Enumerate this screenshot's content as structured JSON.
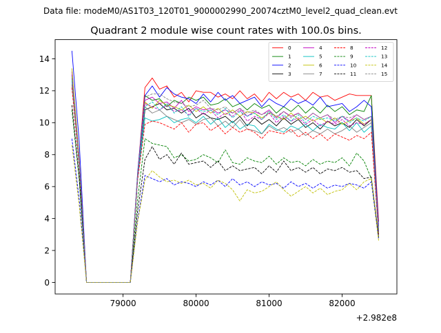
{
  "figure": {
    "suptitle": "Data file: modeM0/AS1T03_120T01_9000002990_20074cztM0_level2_quad_clean.evt"
  },
  "chart_data": {
    "type": "line",
    "title": "Quadrant 2 module wise count rates with 100.0s bins.",
    "xlabel": "",
    "ylabel": "",
    "x_offset_label": "+2.982e8",
    "xlim": [
      78070,
      82750
    ],
    "ylim": [
      -0.72,
      15.2
    ],
    "xticks": [
      79000,
      80000,
      81000,
      82000
    ],
    "xtick_labels": [
      "79000",
      "80000",
      "81000",
      "82000"
    ],
    "yticks": [
      0,
      2,
      4,
      6,
      8,
      10,
      12,
      14
    ],
    "ytick_labels": [
      "0",
      "2",
      "4",
      "6",
      "8",
      "10",
      "12",
      "14"
    ],
    "grid": false,
    "legend": {
      "location": "upper right",
      "columns": 4
    },
    "x": [
      78300,
      78400,
      78500,
      78600,
      78700,
      78800,
      78900,
      79000,
      79100,
      79200,
      79300,
      79400,
      79500,
      79600,
      79700,
      79800,
      79900,
      80000,
      80100,
      80200,
      80300,
      80400,
      80500,
      80600,
      80700,
      80800,
      80900,
      81000,
      81100,
      81200,
      81300,
      81400,
      81500,
      81600,
      81700,
      81800,
      81900,
      82000,
      82100,
      82200,
      82300,
      82400,
      82500
    ],
    "series": [
      {
        "name": "0",
        "color": "#ff0000",
        "dash": "solid",
        "values": [
          12.4,
          7.6,
          0,
          0,
          0,
          0,
          0,
          0,
          0,
          6.8,
          12.2,
          12.8,
          12.1,
          12.3,
          11.6,
          11.9,
          11.3,
          12.0,
          11.9,
          11.9,
          11.6,
          11.8,
          11.5,
          12.0,
          11.5,
          11.8,
          11.3,
          11.9,
          11.5,
          11.9,
          11.6,
          11.8,
          11.4,
          11.9,
          11.6,
          11.7,
          11.4,
          11.6,
          11.8,
          11.7,
          11.7,
          11.7,
          3.8
        ]
      },
      {
        "name": "1",
        "color": "#008000",
        "dash": "solid",
        "values": [
          12.8,
          7.3,
          0,
          0,
          0,
          0,
          0,
          0,
          0,
          6.7,
          11.7,
          11.4,
          11.5,
          11.0,
          11.4,
          11.2,
          11.6,
          11.4,
          11.6,
          11.1,
          11.2,
          11.5,
          11.0,
          11.2,
          10.8,
          11.2,
          10.9,
          11.1,
          10.6,
          11.0,
          10.7,
          11.1,
          10.6,
          11.0,
          10.6,
          11.1,
          10.7,
          11.0,
          10.5,
          10.8,
          10.7,
          11.7,
          3.2
        ]
      },
      {
        "name": "2",
        "color": "#0000ff",
        "dash": "solid",
        "values": [
          14.5,
          8.8,
          0,
          0,
          0,
          0,
          0,
          0,
          0,
          6.9,
          11.7,
          12.3,
          11.6,
          12.2,
          11.8,
          11.6,
          11.5,
          11.2,
          11.8,
          11.3,
          11.9,
          11.4,
          11.7,
          11.2,
          11.4,
          11.6,
          11.0,
          11.5,
          11.2,
          11.0,
          11.5,
          11.2,
          11.4,
          11.1,
          11.6,
          11.0,
          11.1,
          11.2,
          10.7,
          11.0,
          11.4,
          11.0,
          3.5
        ]
      },
      {
        "name": "3",
        "color": "#000000",
        "dash": "solid",
        "values": [
          13.0,
          7.5,
          0,
          0,
          0,
          0,
          0,
          0,
          0,
          6.6,
          10.8,
          11.0,
          11.2,
          10.8,
          10.9,
          10.6,
          10.9,
          10.3,
          10.6,
          10.3,
          10.2,
          10.4,
          10.0,
          10.4,
          9.8,
          10.3,
          9.9,
          10.2,
          9.8,
          10.3,
          9.9,
          10.2,
          9.7,
          10.0,
          9.6,
          10.1,
          9.8,
          10.0,
          9.7,
          10.2,
          9.8,
          10.2,
          3.0
        ]
      },
      {
        "name": "4",
        "color": "#bf00bf",
        "dash": "solid",
        "values": [
          13.2,
          7.7,
          0,
          0,
          0,
          0,
          0,
          0,
          0,
          6.7,
          11.4,
          11.6,
          11.2,
          11.3,
          10.9,
          11.4,
          10.7,
          11.0,
          10.8,
          10.9,
          10.6,
          10.8,
          10.6,
          10.9,
          10.4,
          10.7,
          10.5,
          10.8,
          10.3,
          10.7,
          10.4,
          10.6,
          10.2,
          10.6,
          10.3,
          10.5,
          10.0,
          10.4,
          10.1,
          10.5,
          10.2,
          10.4,
          3.2
        ]
      },
      {
        "name": "5",
        "color": "#00bfbf",
        "dash": "solid",
        "values": [
          12.6,
          7.4,
          0,
          0,
          0,
          0,
          0,
          0,
          0,
          6.5,
          10.3,
          10.1,
          10.2,
          10.4,
          10.0,
          10.2,
          10.3,
          10.0,
          10.4,
          9.9,
          10.3,
          9.7,
          10.1,
          9.6,
          9.9,
          9.8,
          9.3,
          9.9,
          9.6,
          9.4,
          9.8,
          9.6,
          9.9,
          9.5,
          9.9,
          9.7,
          9.6,
          10.0,
          9.5,
          10.0,
          9.4,
          9.8,
          3.0
        ]
      },
      {
        "name": "6",
        "color": "#bfbf00",
        "dash": "solid",
        "values": [
          13.4,
          7.8,
          0,
          0,
          0,
          0,
          0,
          0,
          0,
          6.7,
          11.3,
          10.9,
          11.4,
          11.1,
          11.0,
          10.8,
          11.1,
          10.7,
          11.0,
          10.6,
          10.9,
          10.5,
          10.8,
          10.4,
          10.7,
          10.6,
          10.3,
          10.6,
          10.4,
          10.2,
          10.6,
          10.2,
          10.4,
          10.1,
          10.3,
          10.0,
          10.3,
          9.9,
          10.1,
          10.3,
          9.9,
          10.2,
          3.0
        ]
      },
      {
        "name": "7",
        "color": "#808080",
        "dash": "solid",
        "values": [
          12.9,
          7.5,
          0,
          0,
          0,
          0,
          0,
          0,
          0,
          6.7,
          11.0,
          10.6,
          10.8,
          10.4,
          10.2,
          10.0,
          10.2,
          9.9,
          10.2,
          10.3,
          9.8,
          10.1,
          9.7,
          10.2,
          9.6,
          9.5,
          9.3,
          9.8,
          9.5,
          9.7,
          9.4,
          9.6,
          9.2,
          9.5,
          9.3,
          9.6,
          9.3,
          9.5,
          9.8,
          9.4,
          9.7,
          10.0,
          3.0
        ]
      },
      {
        "name": "8",
        "color": "#ff0000",
        "dash": "dashed",
        "values": [
          12.2,
          7.3,
          0,
          0,
          0,
          0,
          0,
          0,
          0,
          6.4,
          9.9,
          10.1,
          10.0,
          9.8,
          9.6,
          10.0,
          9.4,
          9.9,
          10.0,
          9.5,
          9.8,
          9.3,
          9.7,
          9.4,
          9.6,
          9.4,
          9.0,
          9.5,
          9.4,
          9.3,
          9.6,
          9.1,
          9.4,
          9.0,
          9.3,
          8.9,
          9.3,
          9.1,
          8.9,
          9.2,
          9.0,
          9.4,
          3.0
        ]
      },
      {
        "name": "9",
        "color": "#008000",
        "dash": "dashed",
        "values": [
          10.8,
          6.4,
          0,
          0,
          0,
          0,
          0,
          0,
          0,
          5.2,
          9.0,
          8.7,
          8.6,
          8.5,
          7.8,
          8.0,
          7.6,
          7.7,
          8.0,
          7.8,
          7.5,
          8.3,
          7.5,
          7.4,
          7.8,
          7.6,
          7.5,
          7.9,
          7.4,
          7.8,
          7.5,
          7.6,
          7.3,
          7.7,
          7.4,
          7.6,
          7.5,
          7.8,
          7.3,
          8.1,
          7.6,
          6.5,
          2.8
        ]
      },
      {
        "name": "10",
        "color": "#0000ff",
        "dash": "dashed",
        "values": [
          9.0,
          5.2,
          0,
          0,
          0,
          0,
          0,
          0,
          0,
          3.9,
          6.7,
          6.5,
          6.3,
          6.5,
          6.1,
          6.3,
          6.2,
          6.0,
          6.3,
          6.1,
          6.4,
          6.0,
          6.5,
          6.1,
          6.3,
          6.0,
          6.3,
          6.1,
          6.2,
          5.9,
          6.3,
          6.0,
          6.2,
          5.9,
          6.2,
          5.9,
          6.1,
          6.0,
          6.2,
          6.1,
          5.9,
          6.3,
          2.7
        ]
      },
      {
        "name": "11",
        "color": "#000000",
        "dash": "dashed",
        "values": [
          11.1,
          6.6,
          0,
          0,
          0,
          0,
          0,
          0,
          0,
          4.5,
          7.7,
          8.5,
          7.7,
          8.0,
          7.4,
          8.1,
          7.4,
          7.5,
          7.6,
          7.2,
          7.6,
          7.0,
          7.3,
          7.0,
          7.1,
          7.2,
          6.8,
          7.3,
          6.9,
          7.6,
          7.0,
          7.2,
          6.9,
          7.2,
          6.8,
          7.1,
          7.0,
          7.2,
          6.9,
          7.0,
          6.5,
          6.6,
          2.8
        ]
      },
      {
        "name": "12",
        "color": "#bf00bf",
        "dash": "dashed",
        "values": [
          13.0,
          7.6,
          0,
          0,
          0,
          0,
          0,
          0,
          0,
          6.6,
          11.2,
          11.0,
          10.8,
          11.1,
          10.7,
          10.8,
          10.5,
          10.9,
          10.5,
          10.8,
          10.3,
          10.6,
          10.4,
          10.8,
          10.1,
          10.4,
          10.2,
          10.6,
          10.0,
          10.4,
          10.1,
          10.3,
          9.9,
          10.2,
          9.8,
          10.1,
          9.9,
          10.2,
          9.8,
          10.0,
          9.9,
          10.2,
          3.1
        ]
      },
      {
        "name": "13",
        "color": "#00bfbf",
        "dash": "dashed",
        "values": [
          12.7,
          7.5,
          0,
          0,
          0,
          0,
          0,
          0,
          0,
          6.6,
          11.0,
          11.3,
          10.8,
          11.2,
          10.6,
          11.0,
          10.4,
          10.9,
          10.7,
          10.8,
          10.5,
          10.9,
          10.3,
          10.7,
          10.4,
          10.6,
          10.2,
          10.7,
          10.2,
          10.5,
          10.1,
          10.5,
          10.0,
          10.4,
          10.2,
          10.3,
          10.1,
          10.4,
          10.0,
          10.3,
          10.1,
          10.4,
          3.2
        ]
      },
      {
        "name": "14",
        "color": "#bfbf00",
        "dash": "dashed",
        "values": [
          8.6,
          4.8,
          0,
          0,
          0,
          0,
          0,
          0,
          0,
          3.8,
          6.4,
          7.0,
          6.6,
          6.3,
          6.4,
          6.2,
          6.4,
          6.1,
          6.2,
          5.9,
          6.4,
          6.2,
          5.8,
          5.1,
          5.8,
          5.6,
          5.7,
          6.0,
          6.3,
          5.8,
          5.4,
          5.7,
          6.0,
          5.6,
          5.9,
          5.5,
          5.7,
          5.8,
          6.2,
          5.8,
          6.3,
          6.5,
          2.6
        ]
      },
      {
        "name": "15",
        "color": "#808080",
        "dash": "dashed",
        "values": [
          12.9,
          7.6,
          0,
          0,
          0,
          0,
          0,
          0,
          0,
          6.7,
          11.6,
          11.8,
          11.8,
          11.5,
          11.3,
          11.2,
          11.0,
          11.1,
          11.4,
          10.9,
          10.8,
          11.0,
          10.6,
          10.9,
          10.6,
          10.8,
          10.5,
          10.7,
          10.4,
          10.7,
          10.3,
          10.6,
          10.2,
          10.6,
          10.3,
          10.5,
          10.2,
          10.4,
          10.3,
          10.5,
          10.2,
          10.4,
          3.1
        ]
      }
    ]
  }
}
